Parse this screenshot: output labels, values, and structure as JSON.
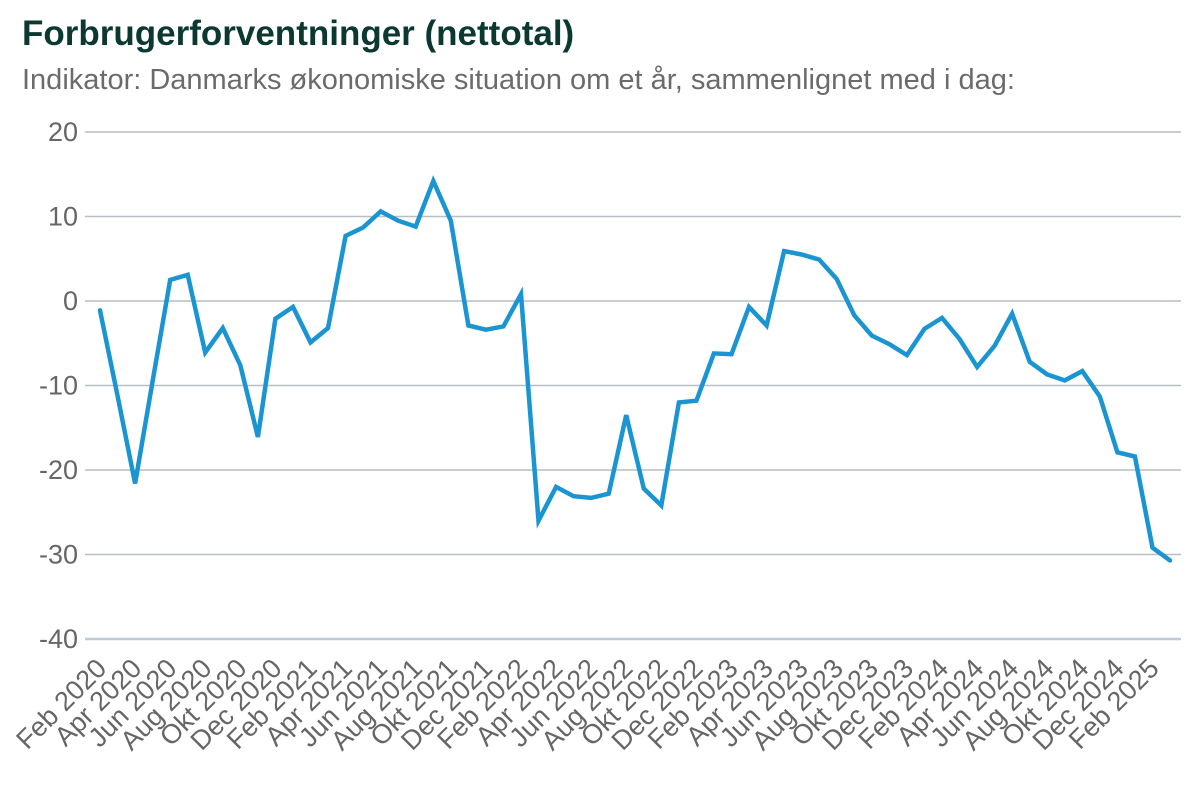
{
  "header": {
    "title": "Forbrugerforventninger (nettotal)",
    "subtitle": "Indikator: Danmarks økonomiske situation om et år, sammenlignet med i dag:"
  },
  "chart_data": {
    "type": "line",
    "title": "Forbrugerforventninger (nettotal)",
    "subtitle": "Indikator: Danmarks økonomiske situation om et år, sammenlignet med i dag:",
    "x": [
      "2020-02",
      "2020-03",
      "2020-04",
      "2020-05",
      "2020-06",
      "2020-07",
      "2020-08",
      "2020-09",
      "2020-10",
      "2020-11",
      "2020-12",
      "2021-01",
      "2021-02",
      "2021-03",
      "2021-04",
      "2021-05",
      "2021-06",
      "2021-07",
      "2021-08",
      "2021-09",
      "2021-10",
      "2021-11",
      "2021-12",
      "2022-01",
      "2022-02",
      "2022-03",
      "2022-04",
      "2022-05",
      "2022-06",
      "2022-07",
      "2022-08",
      "2022-09",
      "2022-10",
      "2022-11",
      "2022-12",
      "2023-01",
      "2023-02",
      "2023-03",
      "2023-04",
      "2023-05",
      "2023-06",
      "2023-07",
      "2023-08",
      "2023-09",
      "2023-10",
      "2023-11",
      "2023-12",
      "2024-01",
      "2024-02",
      "2024-03",
      "2024-04",
      "2024-05",
      "2024-06",
      "2024-07",
      "2024-08",
      "2024-09",
      "2024-10",
      "2024-11",
      "2024-12",
      "2025-01",
      "2025-02",
      "2025-03"
    ],
    "values": [
      -1.1,
      -11.2,
      -21.6,
      -9.5,
      2.5,
      3.1,
      -6.1,
      -3.2,
      -7.6,
      -16.1,
      -2.1,
      -0.7,
      -4.9,
      -3.2,
      7.7,
      8.7,
      10.6,
      9.5,
      8.8,
      14.2,
      9.5,
      -2.9,
      -3.4,
      -3.0,
      0.8,
      -26.0,
      -22.0,
      -23.1,
      -23.3,
      -22.8,
      -13.5,
      -22.2,
      -24.2,
      -12.0,
      -11.8,
      -6.2,
      -6.3,
      -0.7,
      -2.9,
      5.9,
      5.5,
      4.9,
      2.6,
      -1.7,
      -4.1,
      -5.1,
      -6.4,
      -3.3,
      -2.0,
      -4.5,
      -7.8,
      -5.3,
      -1.5,
      -7.2,
      -8.7,
      -9.4,
      -8.3,
      -11.3,
      -17.9,
      -18.4,
      -29.2,
      -30.7
    ],
    "x_tick_labels": [
      "Feb 2020",
      "Apr 2020",
      "Jun 2020",
      "Aug 2020",
      "Okt 2020",
      "Dec 2020",
      "Feb 2021",
      "Apr 2021",
      "Jun 2021",
      "Aug 2021",
      "Okt 2021",
      "Dec 2021",
      "Feb 2022",
      "Apr 2022",
      "Jun 2022",
      "Aug 2022",
      "Okt 2022",
      "Dec 2022",
      "Feb 2023",
      "Apr 2023",
      "Jun 2023",
      "Aug 2023",
      "Okt 2023",
      "Dec 2023",
      "Feb 2024",
      "Apr 2024",
      "Jun 2024",
      "Aug 2024",
      "Okt 2024",
      "Dec 2024",
      "Feb 2025"
    ],
    "x_tick_every": 2,
    "y_ticks": [
      20,
      10,
      0,
      -10,
      -20,
      -30,
      -40
    ],
    "ylim": [
      -40,
      20
    ],
    "grid": "horizontal",
    "legend": "none",
    "xlabel": "",
    "ylabel": "",
    "colors": {
      "line": "#1b95d2",
      "gridline": "#b7bec4",
      "axis_line": "#bccadb",
      "tick_label": "#666666",
      "title": "#0c3832",
      "subtitle": "#6b6b6b"
    }
  }
}
